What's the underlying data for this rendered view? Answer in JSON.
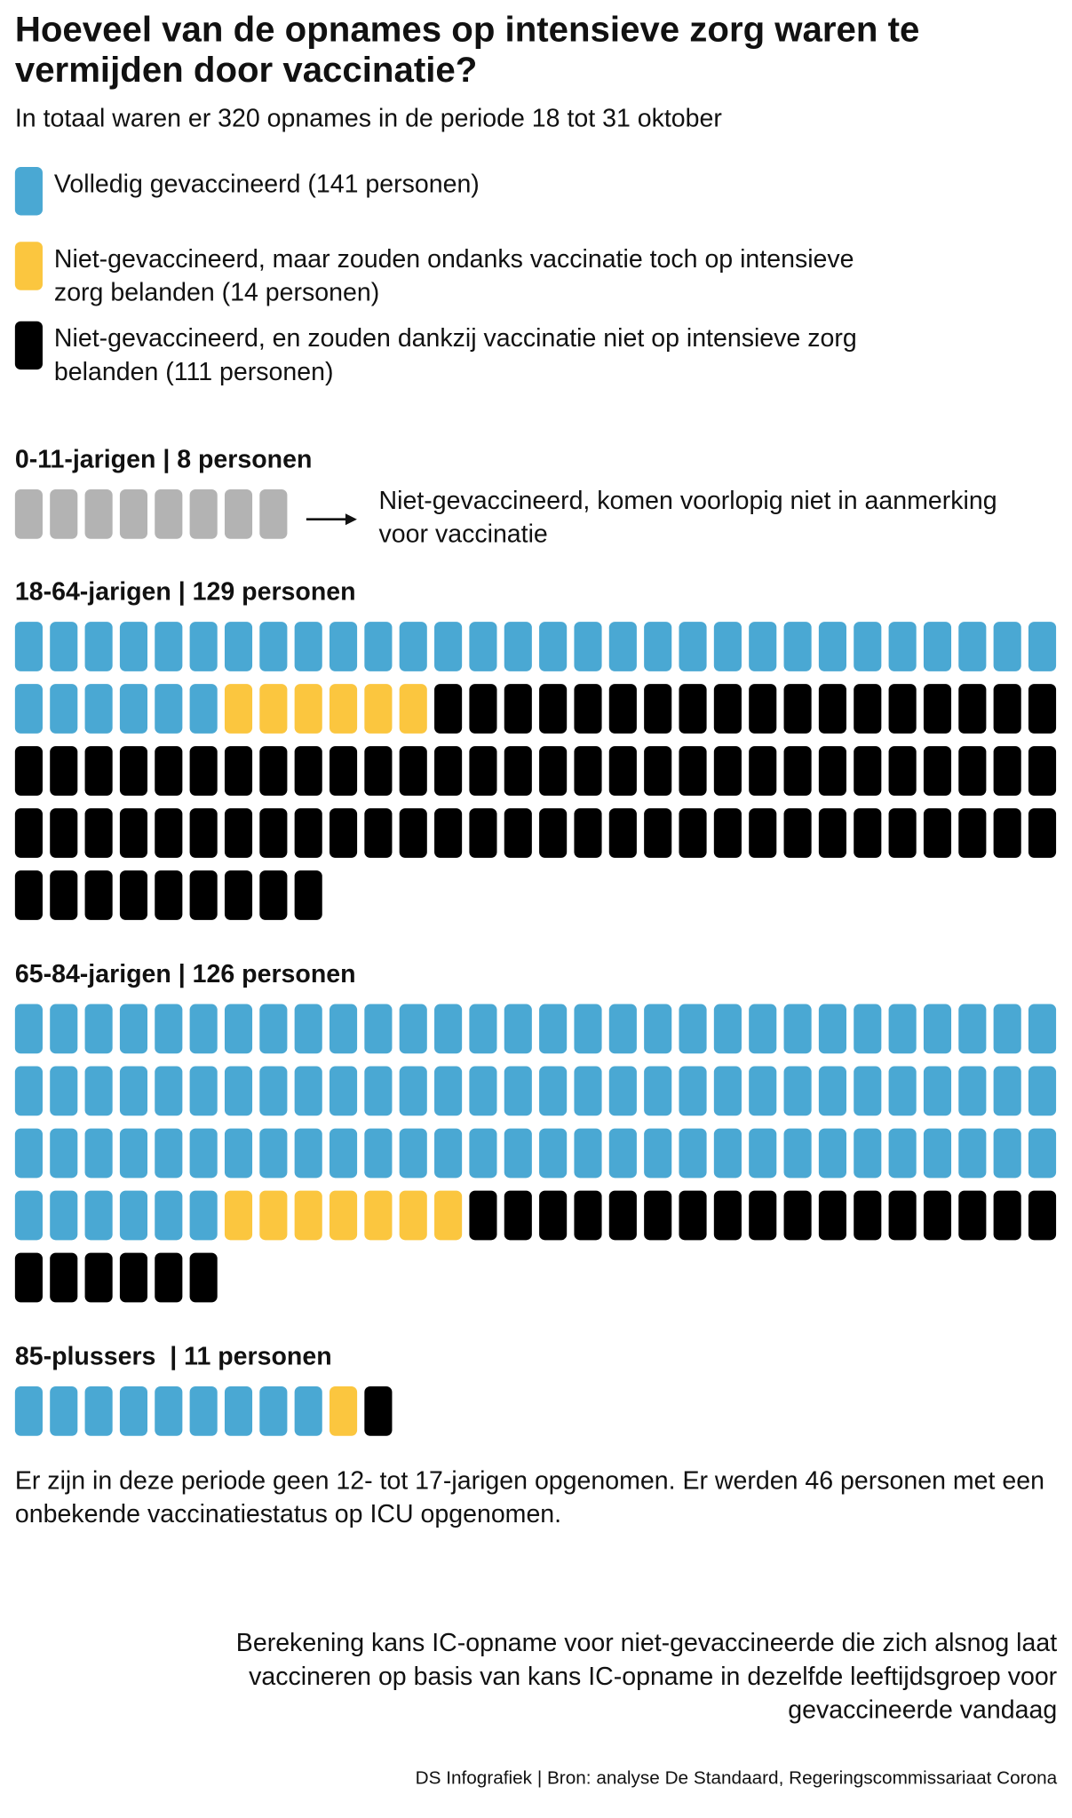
{
  "title": "Hoeveel van de opnames op intensieve zorg waren te vermijden door vaccinatie?",
  "subtitle": "In totaal waren er 320 opnames in de periode 18 tot 31 oktober",
  "legend": [
    {
      "label": "Volledig gevaccineerd (141 personen)",
      "color": "#4aa8d3"
    },
    {
      "label": "Niet-gevaccineerd, maar zouden ondanks vaccinatie toch op intensieve zorg belanden (14 personen)",
      "color": "#fbc63f"
    },
    {
      "label": "Niet-gevaccineerd, en zouden dankzij vaccinatie niet op intensieve zorg belanden (111 personen)",
      "color": "#000000"
    }
  ],
  "note_zero": "Niet-gevaccineerd, komen voorlopig niet in aanmerking voor vaccinatie",
  "footnote": "Er zijn in deze periode geen 12- tot 17-jarigen opgenomen. Er werden 46 personen met een onbekende vaccinatiestatus op ICU opgenomen.",
  "method": "Berekening kans IC-opname voor niet-gevaccineerde die zich alsnog laat vaccineren op basis van kans IC-opname in dezelfde leeftijdsgroep voor gevaccineerde vandaag",
  "credit": "DS Infografiek | Bron: analyse De Standaard, Regeringscommissariaat Corona",
  "colors": {
    "vaccinated": "#4aa8d3",
    "unavoidable": "#fbc63f",
    "avoidable": "#000000",
    "not_eligible": "#b3b3b3"
  },
  "chart_data": {
    "type": "waffle",
    "per_row": 30,
    "unit": "personen",
    "categories": [
      "Volledig gevaccineerd",
      "Niet-gevaccineerd, maar zouden ondanks vaccinatie toch op intensieve zorg belanden",
      "Niet-gevaccineerd, en zouden dankzij vaccinatie niet op intensieve zorg belanden",
      "Niet-gevaccineerd, komen voorlopig niet in aanmerking voor vaccinatie"
    ],
    "groups": [
      {
        "label": "0-11-jarigen | 8 personen",
        "total": 8,
        "vaccinated": 0,
        "unavoidable": 0,
        "avoidable": 0,
        "not_eligible": 8
      },
      {
        "label": "18-64-jarigen | 129 personen",
        "total": 129,
        "vaccinated": 36,
        "unavoidable": 6,
        "avoidable": 87,
        "not_eligible": 0
      },
      {
        "label": "65-84-jarigen | 126 personen",
        "total": 126,
        "vaccinated": 96,
        "unavoidable": 7,
        "avoidable": 23,
        "not_eligible": 0
      },
      {
        "label": "85-plussers  | 11 personen",
        "total": 11,
        "vaccinated": 9,
        "unavoidable": 1,
        "avoidable": 1,
        "not_eligible": 0
      }
    ]
  }
}
